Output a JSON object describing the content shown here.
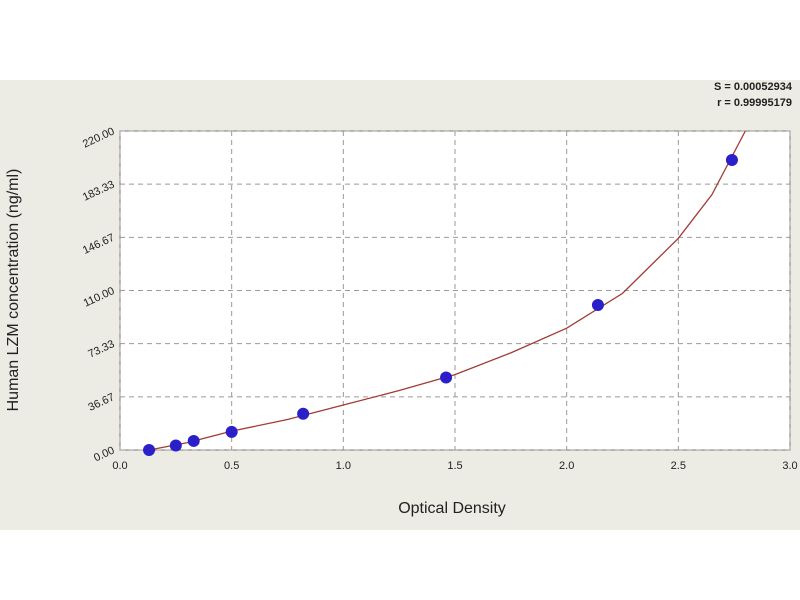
{
  "chart_data": {
    "type": "scatter",
    "x_label": "Optical Density",
    "y_label": "Human LZM concentration (ng/ml)",
    "annotations": [
      "S = 0.00052934",
      "r = 0.99995179"
    ],
    "points": {
      "color": "#2b1fc9",
      "x": [
        0.13,
        0.25,
        0.33,
        0.5,
        0.82,
        1.46,
        2.14,
        2.74
      ],
      "y": [
        0,
        3.12,
        6.25,
        12.5,
        25,
        50,
        100,
        200
      ]
    },
    "fit": {
      "color": "#a23a36",
      "x": [
        0.13,
        0.3,
        0.5,
        0.75,
        1.0,
        1.25,
        1.5,
        1.75,
        2.0,
        2.25,
        2.5,
        2.65,
        2.8
      ],
      "y": [
        0,
        5,
        13,
        21,
        31,
        41,
        52,
        67,
        84,
        108,
        146,
        176,
        220
      ]
    },
    "xlim": [
      0,
      3
    ],
    "ylim": [
      0,
      220
    ],
    "xticks": [
      {
        "value": 0,
        "label": "0.0"
      },
      {
        "value": 0.5,
        "label": "0.5"
      },
      {
        "value": 1,
        "label": "1.0"
      },
      {
        "value": 1.5,
        "label": "1.5"
      },
      {
        "value": 2,
        "label": "2.0"
      },
      {
        "value": 2.5,
        "label": "2.5"
      },
      {
        "value": 3,
        "label": "3.0"
      }
    ],
    "yticks": [
      {
        "value": 0,
        "label": "0.00"
      },
      {
        "value": 36.67,
        "label": "36.67"
      },
      {
        "value": 73.33,
        "label": "73.33"
      },
      {
        "value": 110,
        "label": "110.00"
      },
      {
        "value": 146.67,
        "label": "146.67"
      },
      {
        "value": 183.33,
        "label": "183.33"
      },
      {
        "value": 220,
        "label": "220.00"
      }
    ],
    "grid": true
  }
}
